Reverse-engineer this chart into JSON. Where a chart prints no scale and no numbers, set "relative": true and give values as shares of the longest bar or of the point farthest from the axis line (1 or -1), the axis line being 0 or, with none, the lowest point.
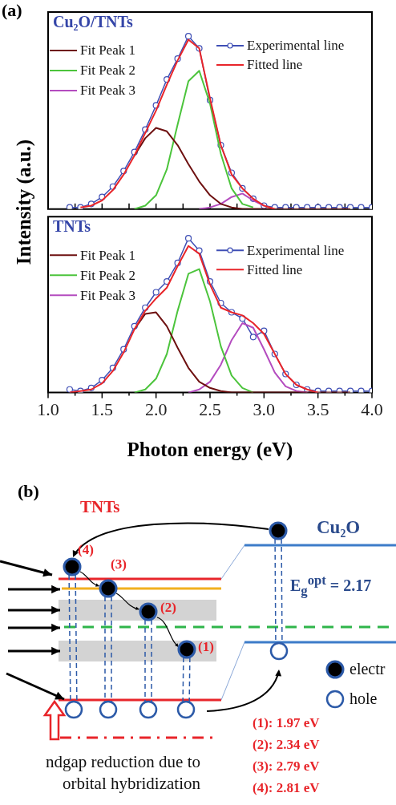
{
  "chart_data": [
    {
      "type": "line",
      "title": "Cu₂O/TNTs",
      "ylabel": "Intensity (a.u.)",
      "annotations": [
        "(a)"
      ],
      "relative": true,
      "xlim": [
        1,
        4
      ],
      "tick_labels": false,
      "legend": "top",
      "grid": false,
      "line_style": "solid",
      "xticks": [
        1,
        1.25,
        1.5,
        1.75,
        2,
        2.25,
        2.5,
        2.75,
        3,
        3.25,
        3.5,
        3.75,
        4
      ],
      "x": [
        1.2,
        1.3,
        1.4,
        1.5,
        1.6,
        1.7,
        1.8,
        1.9,
        2.0,
        2.1,
        2.2,
        2.3,
        2.4,
        2.5,
        2.6,
        2.7,
        2.8,
        2.9,
        3.0,
        3.1,
        3.2,
        3.3,
        3.4,
        3.5,
        3.6,
        3.7,
        3.8,
        3.9,
        4.0
      ],
      "series": [
        {
          "name": "Experimental line",
          "color": "#3f4fb5",
          "marker": "circle",
          "values": [
            0.01,
            0.01,
            0.03,
            0.07,
            0.13,
            0.22,
            0.33,
            0.46,
            0.6,
            0.75,
            0.87,
            1,
            0.93,
            0.63,
            0.37,
            0.21,
            0.12,
            0.06,
            0.02,
            0.01,
            0.01,
            0.01,
            0.01,
            0.01,
            0.01,
            0.01,
            0.01,
            0.01,
            0.01
          ]
        },
        {
          "name": "Fitted line",
          "color": "#e8252a",
          "values": [
            null,
            0.01,
            0.02,
            0.05,
            0.11,
            0.2,
            0.31,
            0.44,
            0.57,
            0.72,
            0.86,
            0.98,
            0.93,
            0.64,
            0.37,
            0.2,
            0.12,
            0.06,
            0.02,
            0,
            null,
            null,
            null,
            null,
            null,
            null,
            null,
            null,
            null
          ]
        },
        {
          "name": "Fit Peak 1",
          "color": "#6e1010",
          "values": [
            null,
            null,
            null,
            null,
            null,
            null,
            0.31,
            0.41,
            0.47,
            0.45,
            0.37,
            0.26,
            0.16,
            0.08,
            0.03,
            0.01,
            0,
            0,
            0,
            0,
            0,
            0,
            0,
            0,
            0,
            0,
            0,
            null,
            null
          ]
        },
        {
          "name": "Fit Peak 2",
          "color": "#4cc43c",
          "values": [
            null,
            null,
            null,
            null,
            null,
            null,
            0,
            0.02,
            0.08,
            0.23,
            0.49,
            0.74,
            0.8,
            0.61,
            0.32,
            0.12,
            0.03,
            0.01,
            null,
            null,
            null,
            null,
            null,
            null,
            null,
            null,
            null,
            null,
            null
          ]
        },
        {
          "name": "Fit Peak 3",
          "color": "#b44cbf",
          "values": [
            null,
            null,
            null,
            null,
            null,
            null,
            null,
            null,
            null,
            null,
            null,
            null,
            0,
            0.01,
            0.03,
            0.07,
            0.09,
            0.05,
            0.02,
            null,
            null,
            null,
            null,
            null,
            null,
            null,
            null,
            null,
            null
          ]
        }
      ]
    },
    {
      "type": "line",
      "title": "TNTs",
      "xlabel": "Photon energy (eV)",
      "relative": true,
      "xlim": [
        1,
        4
      ],
      "legend": "top",
      "grid": false,
      "line_style": "solid",
      "xticks": [
        {
          "value": 1,
          "label": "1.0"
        },
        {
          "value": 1.25,
          "label": null
        },
        {
          "value": 1.5,
          "label": "1.5"
        },
        {
          "value": 1.75,
          "label": null
        },
        {
          "value": 2,
          "label": "2.0"
        },
        {
          "value": 2.25,
          "label": null
        },
        {
          "value": 2.5,
          "label": "2.5"
        },
        {
          "value": 2.75,
          "label": null
        },
        {
          "value": 3,
          "label": "3.0"
        },
        {
          "value": 3.25,
          "label": null
        },
        {
          "value": 3.5,
          "label": "3.5"
        },
        {
          "value": 3.75,
          "label": null
        },
        {
          "value": 4,
          "label": "4.0"
        }
      ],
      "x": [
        1.2,
        1.3,
        1.4,
        1.5,
        1.6,
        1.7,
        1.8,
        1.9,
        2.0,
        2.1,
        2.2,
        2.3,
        2.4,
        2.5,
        2.6,
        2.7,
        2.8,
        2.9,
        3.0,
        3.1,
        3.2,
        3.3,
        3.4,
        3.5,
        3.6,
        3.7,
        3.8,
        3.9,
        4.0
      ],
      "series": [
        {
          "name": "Experimental line",
          "color": "#3f4fb5",
          "marker": "circle",
          "values": [
            0.02,
            0.01,
            0.03,
            0.08,
            0.16,
            0.28,
            0.43,
            0.55,
            0.65,
            0.72,
            0.84,
            1,
            0.92,
            0.72,
            0.58,
            0.52,
            0.48,
            0.36,
            0.4,
            0.25,
            0.12,
            0.05,
            0.02,
            0.01,
            0.01,
            0.01,
            0.01,
            0.01,
            0.01
          ]
        },
        {
          "name": "Fitted line",
          "color": "#e8252a",
          "values": [
            0,
            0.01,
            0.02,
            0.06,
            0.14,
            0.26,
            0.41,
            0.53,
            0.61,
            0.68,
            0.82,
            0.95,
            0.9,
            0.7,
            0.55,
            0.52,
            0.5,
            0.45,
            0.38,
            0.25,
            0.12,
            0.05,
            0.02,
            0,
            null,
            null,
            null,
            null,
            null
          ]
        },
        {
          "name": "Fit Peak 1",
          "color": "#6e1010",
          "values": [
            null,
            null,
            null,
            null,
            null,
            null,
            0.41,
            0.51,
            0.52,
            0.43,
            0.29,
            0.16,
            0.07,
            0.03,
            0.01,
            0,
            0,
            0,
            0,
            0,
            0,
            0,
            0,
            0,
            0,
            0,
            0,
            null,
            null
          ]
        },
        {
          "name": "Fit Peak 2",
          "color": "#4cc43c",
          "values": [
            null,
            null,
            null,
            null,
            null,
            null,
            0,
            0.02,
            0.09,
            0.25,
            0.53,
            0.77,
            0.8,
            0.59,
            0.3,
            0.11,
            0.03,
            0,
            null,
            null,
            null,
            null,
            null,
            null,
            null,
            null,
            null,
            null,
            null
          ]
        },
        {
          "name": "Fit Peak 3",
          "color": "#b44cbf",
          "values": [
            null,
            null,
            null,
            null,
            null,
            null,
            null,
            null,
            null,
            null,
            null,
            0,
            0.02,
            0.07,
            0.18,
            0.34,
            0.45,
            0.42,
            0.28,
            0.13,
            0.04,
            0.01,
            0,
            null,
            null,
            null,
            null,
            null,
            null
          ]
        }
      ]
    },
    {
      "type": "other",
      "annotations": [
        "(b)",
        "TNTs",
        "Cu₂O",
        "E$_{g}$$^{opt}$ = 2.17",
        "(4)",
        "(3)",
        "(2)",
        "(1)",
        "electr",
        "hole",
        "(1): 1.97 eV",
        "(2): 2.34 eV",
        "(3): 2.79 eV",
        "(4): 2.81 eV",
        "ndgap reduction due to",
        "orbital hybridization"
      ]
    }
  ]
}
